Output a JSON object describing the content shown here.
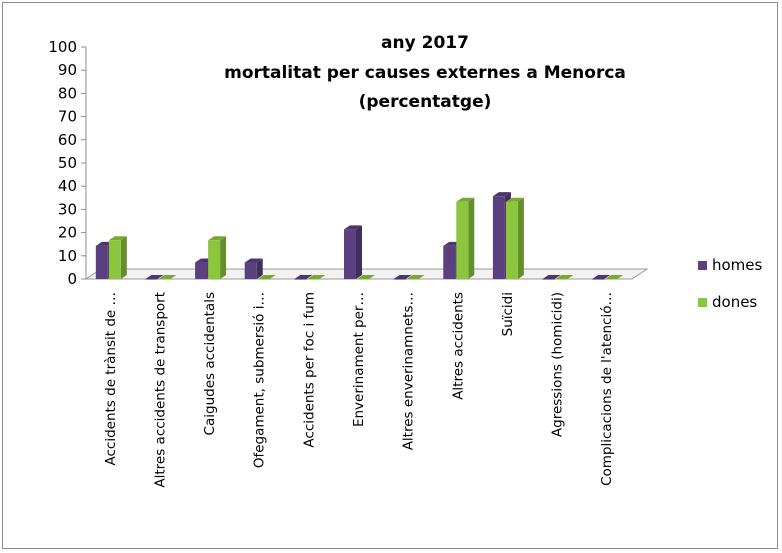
{
  "chart_data": {
    "type": "bar",
    "title_lines": [
      "any 2017",
      "mortalitat per causes externes a Menorca",
      "(percentatge)"
    ],
    "categories": [
      "Accidents de trànsit de …",
      "Altres accidents de transport",
      "Caigudes accidentals",
      "Ofegament, submersió i…",
      "Accidents per foc i fum",
      "Enverinament per…",
      "Altres enverinamnets…",
      "Altres accidents",
      "Suïcidi",
      "Agressions (homicidi)",
      "Complicacions de l'atenció…"
    ],
    "series": [
      {
        "name": "homes",
        "color": "#5b4080",
        "values": [
          14.3,
          0,
          7.1,
          7.1,
          0,
          21.4,
          0,
          14.3,
          35.7,
          0,
          0
        ]
      },
      {
        "name": "dones",
        "color": "#8cc63f",
        "values": [
          16.7,
          0,
          16.7,
          0,
          0,
          0,
          0,
          33.3,
          33.3,
          0,
          0
        ]
      }
    ],
    "yticks": [
      "0",
      "10",
      "20",
      "30",
      "40",
      "50",
      "60",
      "70",
      "80",
      "90",
      "100"
    ],
    "ylim": [
      0,
      100
    ],
    "xlabel": "",
    "ylabel": "",
    "grid": false,
    "legend_position": "right",
    "style": "3d-clustered-column"
  }
}
